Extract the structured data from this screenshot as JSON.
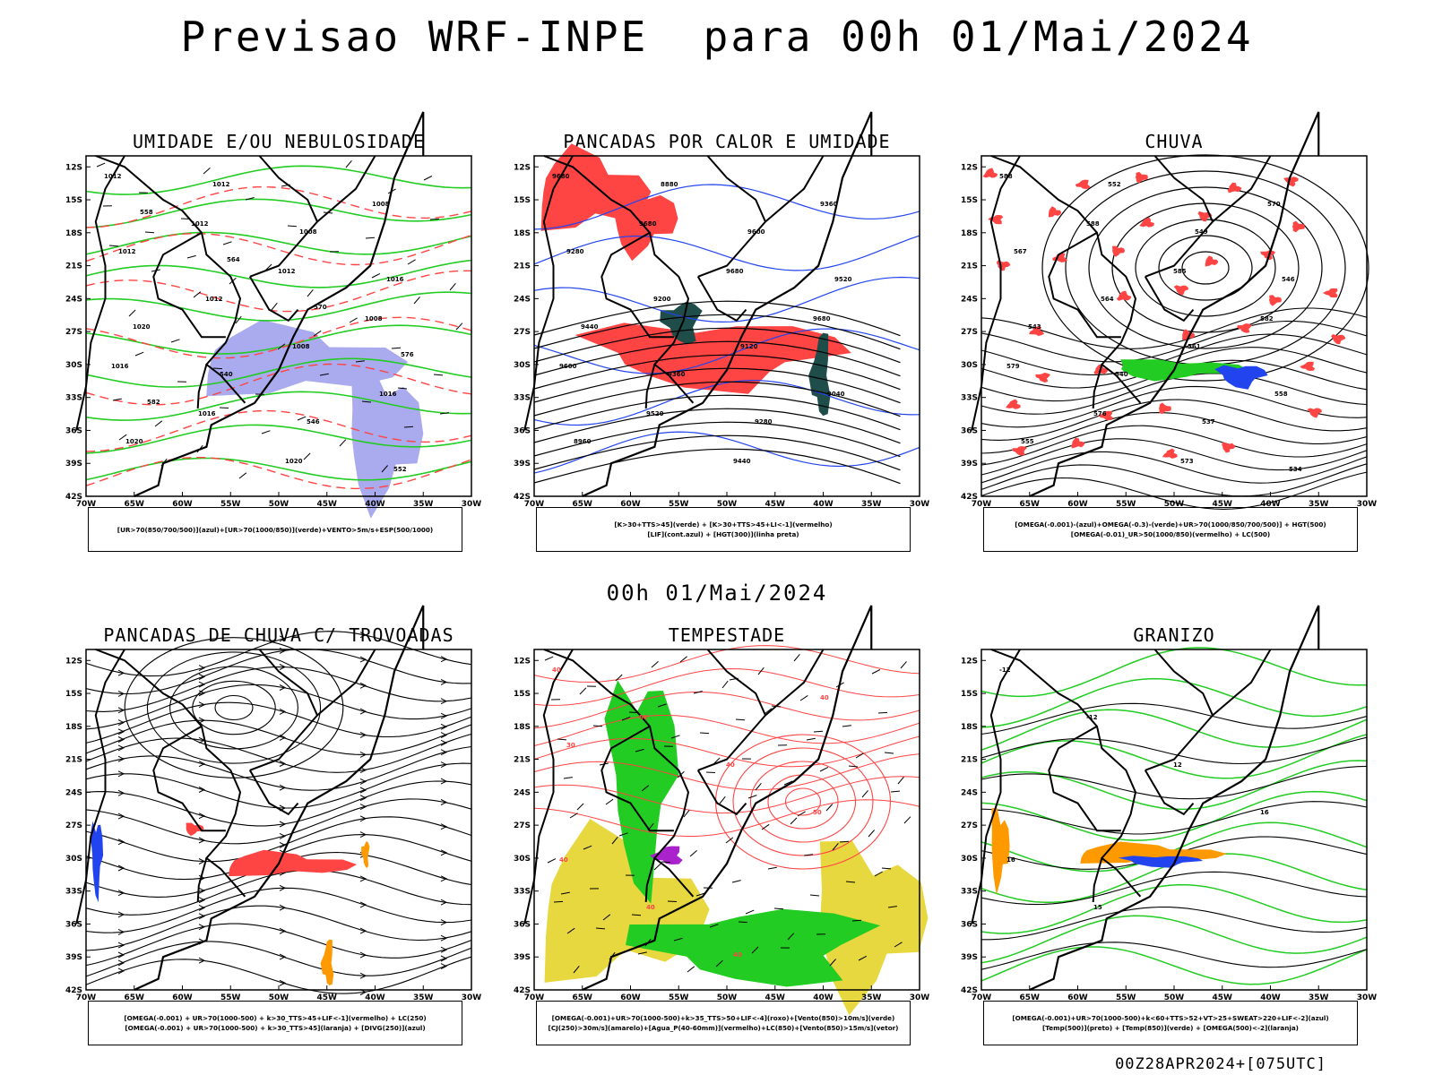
{
  "page": {
    "title": "Previsao WRF-INPE  para 00h 01/Mai/2024",
    "subtitle": "00h 01/Mai/2024",
    "footer": "00Z28APR2024+[075UTC]"
  },
  "axes": {
    "lat_ticks": [
      "12S",
      "15S",
      "18S",
      "21S",
      "24S",
      "27S",
      "30S",
      "33S",
      "36S",
      "39S",
      "42S"
    ],
    "lon_ticks": [
      "70W",
      "65W",
      "60W",
      "55W",
      "50W",
      "45W",
      "40W",
      "35W",
      "30W"
    ]
  },
  "colors": {
    "humid_green": "#22cc22",
    "blue_shade": "#aaaaee",
    "red_fill": "#ff4444",
    "dark_teal": "#1f4d4a",
    "yellow_fill": "#e8d840",
    "orange": "#ff9900",
    "blue": "#2244ee"
  },
  "panels": [
    {
      "title": "UMIDADE E/OU NEBULOSIDADE",
      "legend": [
        "[UR>70(850/700/500)](azul)+[UR>70(1000/850)](verde)+VENTO>5m/s+ESP(500/1000)"
      ],
      "labels": [
        "1012",
        "1012",
        "1012",
        "1008",
        "1016",
        "1016",
        "1020",
        "1008",
        "1012",
        "1012",
        "1008",
        "1016",
        "1020",
        "1012",
        "1008",
        "1016",
        "1020",
        "540",
        "546",
        "552",
        "558",
        "564",
        "570",
        "576",
        "582"
      ]
    },
    {
      "title": "PANCADAS POR CALOR E UMIDADE",
      "legend": [
        "[K>30+TTS>45](verde) + [K>30+TTS>45+LI<-1](vermelho)",
        "[LIF](cont.azul) + [HGT(300)](linha preta)"
      ],
      "labels": [
        "9680",
        "9680",
        "9680",
        "9680",
        "9600",
        "9520",
        "9440",
        "9360",
        "9280",
        "9200",
        "9120",
        "9040",
        "8960",
        "8880",
        "9600",
        "9520",
        "9440",
        "9360",
        "9280"
      ]
    },
    {
      "title": "CHUVA",
      "legend": [
        "[OMEGA(-0.001)-(azul)+OMEGA(-0.3)-(verde)+UR>70(1000/850/700/500)] + HGT(500)",
        "[OMEGA(-0.01)_UR>50(1000/850)(vermelho) + LC(500)"
      ],
      "labels": [
        "588",
        "588",
        "585",
        "582",
        "579",
        "576",
        "573",
        "570",
        "567",
        "564",
        "561",
        "558",
        "555",
        "552",
        "549",
        "546",
        "543",
        "540",
        "537",
        "534"
      ]
    },
    {
      "title": "PANCADAS DE CHUVA C/ TROVOADAS",
      "legend": [
        "[OMEGA(-0.001) + UR>70(1000-500) + k>30_TTS>45+LIF<-1](vermelho) + LC(250)",
        "[OMEGA(-0.001) + UR>70(1000-500) + k>30_TTS>45](laranja) + [DIVG(250)](azul)"
      ],
      "labels": []
    },
    {
      "title": "TEMPESTADE",
      "legend": [
        "[OMEGA(-0.001)+UR>70(1000-500)+k>35_TTS>50+LIF<-4](roxo)+[Vento(850)>10m/s](verde)",
        "[CJ(250)>30m/s](amarelo)+[Agua_P(40-60mm)](vermelho)+LC(850)+[Vento(850)>15m/s](vetor)"
      ],
      "labels": [
        "40",
        "50",
        "40",
        "50",
        "40",
        "40",
        "40",
        "40",
        "30"
      ]
    },
    {
      "title": "GRANIZO",
      "legend": [
        "[OMEGA(-0.001)+UR>70(1000-500)+k<60+TTS>52+VT>25+SWEAT>220+LIF<-2](azul)",
        "[Temp(500)](preto) + [Temp(850)](verde) + [OMEGA(500)<-2](laranja)"
      ],
      "labels": [
        "-12",
        "-12",
        "12",
        "16",
        "16",
        "15"
      ]
    }
  ]
}
